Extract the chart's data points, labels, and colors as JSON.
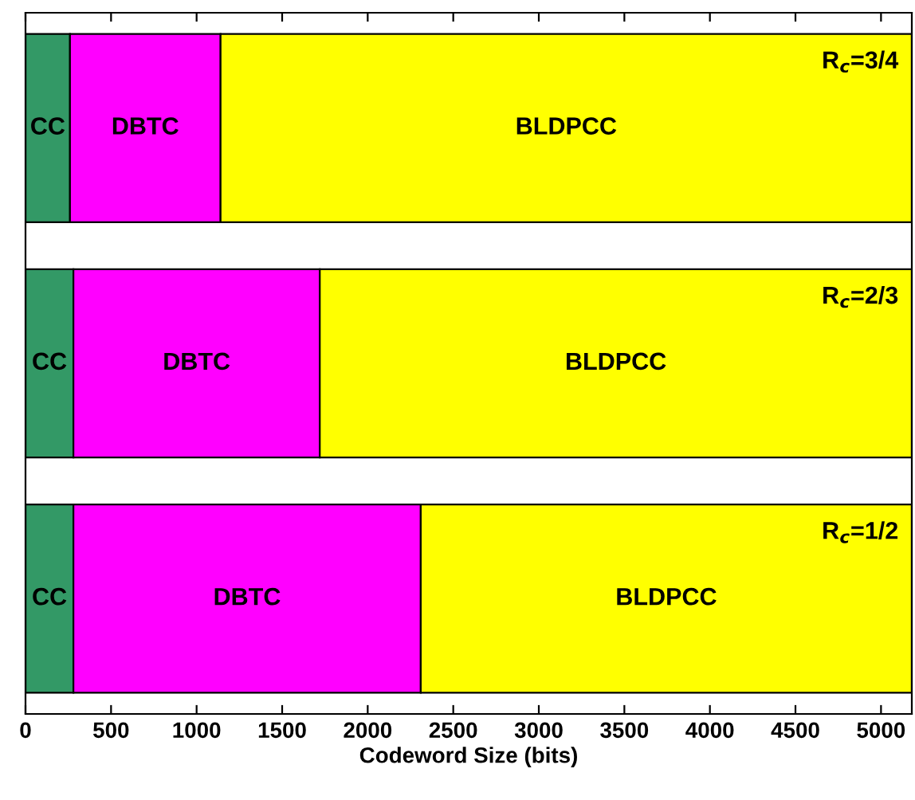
{
  "chart_data": {
    "type": "bar",
    "orientation": "horizontal",
    "stacked": true,
    "categories": [
      null,
      null,
      null
    ],
    "series": [
      {
        "name": "CC",
        "color": "#339966",
        "values": [
          260,
          280,
          280
        ]
      },
      {
        "name": "DBTC",
        "color": "#ff00ff",
        "values": [
          880,
          1440,
          2030
        ]
      },
      {
        "name": "BLDPCC",
        "color": "#ffff00",
        "values": [
          4040,
          3460,
          2870
        ]
      }
    ],
    "xlim": [
      0,
      5180
    ],
    "xticks": [
      0,
      500,
      1000,
      1500,
      2000,
      2500,
      3000,
      3500,
      4000,
      4500,
      5000
    ],
    "xlabel": "Codeword Size (bits)",
    "annotations": [
      "R$_{c}$=3/4",
      "R$_{c}$=2/3",
      "R$_{c}$=1/2"
    ],
    "grid": false,
    "legend": false
  }
}
